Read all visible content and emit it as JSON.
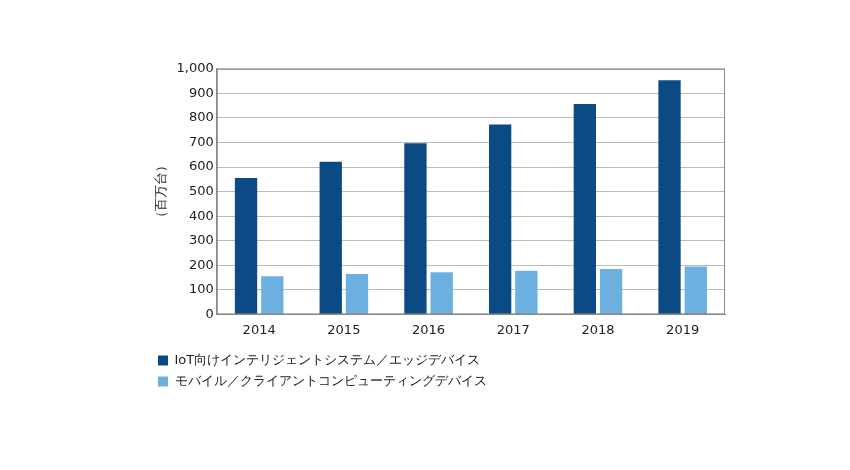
{
  "chart_data": {
    "type": "bar",
    "y_label": "（百万台）",
    "categories": [
      "2014",
      "2015",
      "2016",
      "2017",
      "2018",
      "2019"
    ],
    "series": [
      {
        "name": "IoT向けインテリジェントシステム／エッジデバイス",
        "color": "#0b4a84",
        "values": [
          555,
          622,
          697,
          773,
          857,
          953
        ]
      },
      {
        "name": "モバイル／クライアントコンピューティングデバイス",
        "color": "#6cb0e0",
        "values": [
          155,
          165,
          172,
          178,
          185,
          195
        ]
      }
    ],
    "ylim": [
      0,
      1000
    ],
    "yticks": [
      0,
      100,
      200,
      300,
      400,
      500,
      600,
      700,
      800,
      900,
      {
        "value": 1000,
        "label": "1,000"
      }
    ],
    "grid": true,
    "legend": "bottom"
  }
}
